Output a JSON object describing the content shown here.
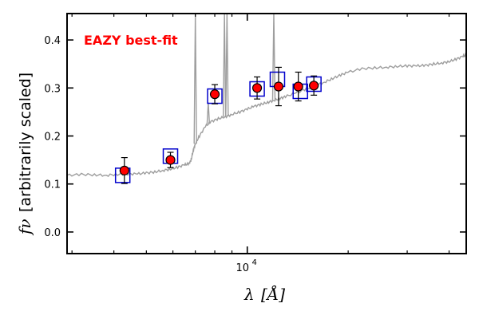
{
  "chart_data": {
    "type": "scatter",
    "title": "",
    "annotation": "EAZY best-fit",
    "annotation_color": "#ff0000",
    "xlabel": "λ [Å]",
    "xlabel_symbol": "λ",
    "xlabel_unit": "[Å]",
    "ylabel": "f_ν [arbitrarily scaled]",
    "ylabel_symbol": "fν",
    "ylabel_text": "[arbitrarily scaled]",
    "xscale": "log",
    "xlim": [
      2900,
      45000
    ],
    "ylim": [
      -0.045,
      0.455
    ],
    "yticks": [
      0.0,
      0.1,
      0.2,
      0.3,
      0.4
    ],
    "ytick_labels": [
      "0.0",
      "0.1",
      "0.2",
      "0.3",
      "0.4"
    ],
    "xtick_labels": [
      {
        "value": 10000,
        "base": "10",
        "exp": "4"
      }
    ],
    "colors": {
      "sed": "#9e9e9e",
      "model": "#0000cc",
      "observed": "#ff0000",
      "errorbar": "#000000"
    },
    "series": [
      {
        "name": "observed photometry",
        "points": [
          {
            "x": 4300,
            "y": 0.128,
            "err": 0.027
          },
          {
            "x": 5900,
            "y": 0.15,
            "err": 0.016
          },
          {
            "x": 8000,
            "y": 0.287,
            "err": 0.02
          },
          {
            "x": 10700,
            "y": 0.3,
            "err": 0.023
          },
          {
            "x": 12400,
            "y": 0.303,
            "err": 0.04
          },
          {
            "x": 14200,
            "y": 0.303,
            "err": 0.03
          },
          {
            "x": 15800,
            "y": 0.305,
            "err": 0.02
          }
        ]
      },
      {
        "name": "model fluxes",
        "points": [
          {
            "x": 4250,
            "y": 0.118
          },
          {
            "x": 5900,
            "y": 0.158
          },
          {
            "x": 8000,
            "y": 0.283
          },
          {
            "x": 10700,
            "y": 0.298
          },
          {
            "x": 12300,
            "y": 0.318
          },
          {
            "x": 14400,
            "y": 0.293
          },
          {
            "x": 15800,
            "y": 0.308
          }
        ]
      },
      {
        "name": "EAZY best-fit SED",
        "x": [
          2900,
          3200,
          3500,
          3800,
          4100,
          4400,
          4700,
          5000,
          5300,
          5600,
          5900,
          6200,
          6500,
          6700,
          6800,
          6900,
          7000,
          7200,
          7500,
          7800,
          8200,
          8600,
          9000,
          9500,
          10000,
          10500,
          11000,
          11500,
          12000,
          12500,
          13000,
          14000,
          15000,
          16000,
          17000,
          18000,
          19000,
          20000,
          22000,
          24000,
          26000,
          28000,
          30000,
          32000,
          34000,
          36000,
          38000,
          40000,
          42000,
          44000,
          45000
        ],
        "y": [
          0.118,
          0.12,
          0.119,
          0.118,
          0.12,
          0.121,
          0.121,
          0.123,
          0.125,
          0.128,
          0.131,
          0.135,
          0.14,
          0.142,
          0.15,
          0.17,
          0.184,
          0.2,
          0.22,
          0.23,
          0.236,
          0.24,
          0.245,
          0.25,
          0.256,
          0.262,
          0.266,
          0.27,
          0.274,
          0.278,
          0.282,
          0.29,
          0.298,
          0.305,
          0.312,
          0.32,
          0.327,
          0.333,
          0.34,
          0.342,
          0.343,
          0.345,
          0.346,
          0.346,
          0.347,
          0.35,
          0.352,
          0.355,
          0.36,
          0.366,
          0.368
        ]
      },
      {
        "name": "emission lines",
        "lines": [
          {
            "x": 7000,
            "peak": 0.455
          },
          {
            "x": 7650,
            "peak": 0.27
          },
          {
            "x": 8550,
            "peak": 0.455
          },
          {
            "x": 8700,
            "peak": 0.455
          },
          {
            "x": 12000,
            "peak": 0.455
          }
        ]
      }
    ]
  }
}
